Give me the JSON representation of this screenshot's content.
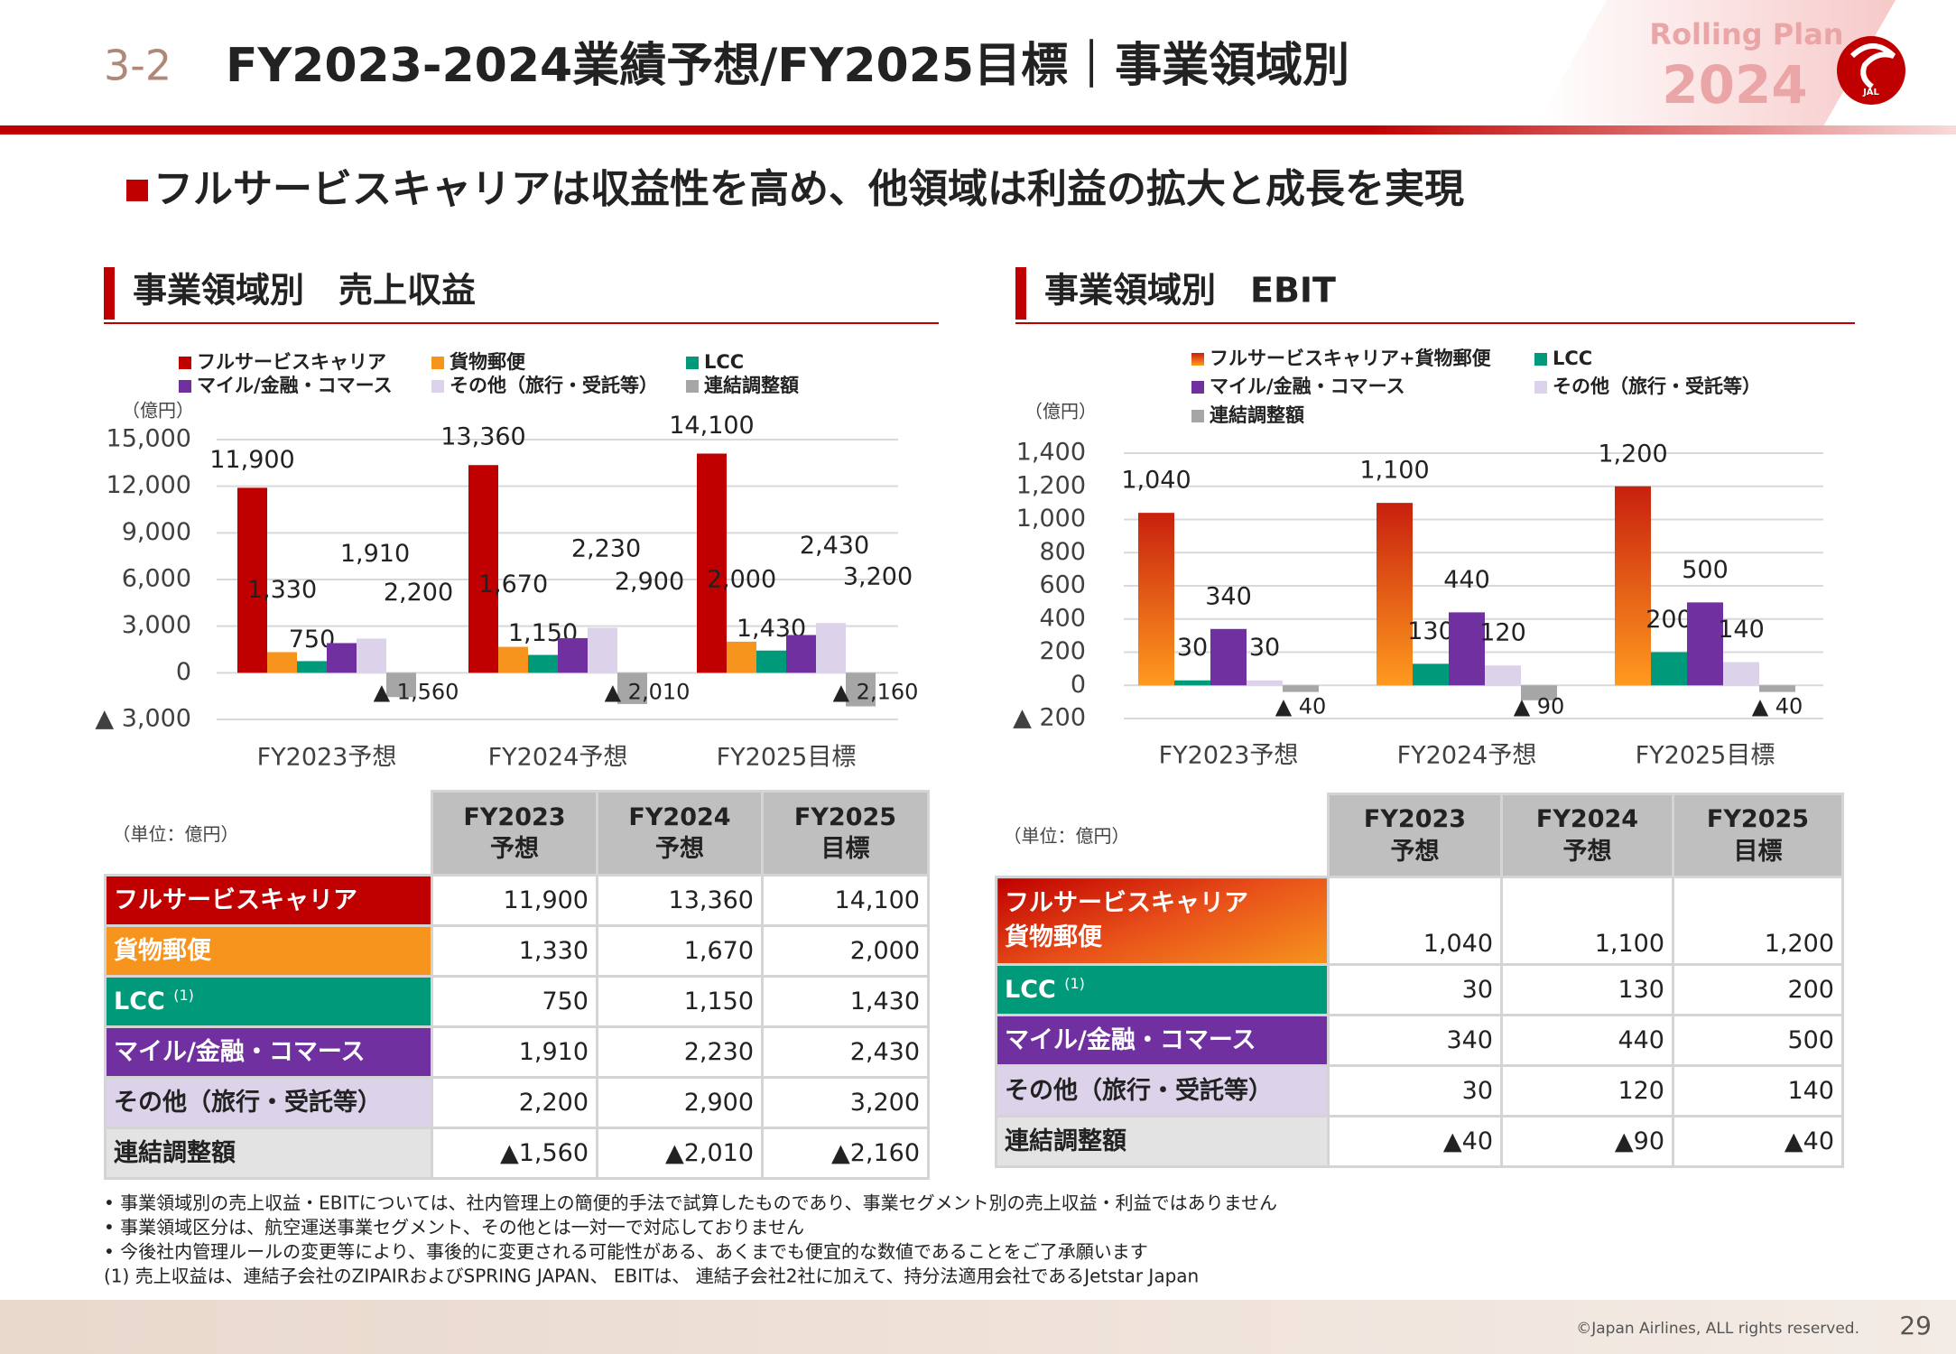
{
  "header": {
    "section": "3-2",
    "title": "FY2023-2024業績予想/FY2025目標｜事業領域別",
    "badge_top": "Rolling Plan",
    "badge_year": "2024",
    "logo": "JAL"
  },
  "headline": "フルサービスキャリアは収益性を高め、他領域は利益の拡大と成長を実現",
  "chart_data": [
    {
      "type": "bar",
      "title": "事業領域別　売上収益",
      "unit": "（億円）",
      "categories": [
        "FY2023予想",
        "FY2024予想",
        "FY2025目標"
      ],
      "series": [
        {
          "name": "フルサービスキャリア",
          "color": "#c00000",
          "values": [
            11900,
            13360,
            14100
          ],
          "value_labels": [
            "11,900",
            "13,360",
            "14,100"
          ]
        },
        {
          "name": "貨物郵便",
          "color": "#f7941d",
          "values": [
            1330,
            1670,
            2000
          ],
          "value_labels": [
            "1,330",
            "1,670",
            "2,000"
          ]
        },
        {
          "name": "LCC",
          "color": "#00997a",
          "values": [
            750,
            1150,
            1430
          ],
          "value_labels": [
            "750",
            "1,150",
            "1,430"
          ]
        },
        {
          "name": "マイル/金融・コマース",
          "color": "#7030a0",
          "values": [
            1910,
            2230,
            2430
          ],
          "value_labels": [
            "1,910",
            "2,230",
            "2,430"
          ]
        },
        {
          "name": "その他（旅行・受託等）",
          "color": "#dcd3ea",
          "values": [
            2200,
            2900,
            3200
          ],
          "value_labels": [
            "2,200",
            "2,900",
            "3,200"
          ]
        },
        {
          "name": "連結調整額",
          "color": "#a6a6a6",
          "values": [
            -1560,
            -2010,
            -2160
          ],
          "value_labels": [
            "▲ 1,560",
            "▲ 2,010",
            "▲ 2,160"
          ]
        }
      ],
      "ylim": [
        -3000,
        15000
      ],
      "yticks": [
        {
          "value": -3000,
          "label": "▲ 3,000"
        },
        0,
        {
          "value": 3000,
          "label": "3,000"
        },
        {
          "value": 6000,
          "label": "6,000"
        },
        {
          "value": 9000,
          "label": "9,000"
        },
        {
          "value": 12000,
          "label": "12,000"
        },
        {
          "value": 15000,
          "label": "15,000"
        }
      ],
      "grid": true
    },
    {
      "type": "bar",
      "title": "事業領域別　EBIT",
      "unit": "（億円）",
      "categories": [
        "FY2023予想",
        "FY2024予想",
        "FY2025目標"
      ],
      "series": [
        {
          "name": "フルサービスキャリア+貨物郵便",
          "color": "#e0561b",
          "gradient": [
            "#c8200e",
            "#ff9a1f"
          ],
          "values": [
            1040,
            1100,
            1200
          ],
          "value_labels": [
            "1,040",
            "1,100",
            "1,200"
          ]
        },
        {
          "name": "LCC",
          "color": "#00997a",
          "values": [
            30,
            130,
            200
          ]
        },
        {
          "name": "マイル/金融・コマース",
          "color": "#7030a0",
          "values": [
            340,
            440,
            500
          ]
        },
        {
          "name": "その他（旅行・受託等）",
          "color": "#dcd3ea",
          "values": [
            30,
            120,
            140
          ]
        },
        {
          "name": "連結調整額",
          "color": "#a6a6a6",
          "values": [
            -40,
            -90,
            -40
          ],
          "value_labels": [
            "▲ 40",
            "▲ 90",
            "▲ 40"
          ]
        }
      ],
      "ylim": [
        -200,
        1400
      ],
      "yticks": [
        {
          "value": -200,
          "label": "▲ 200"
        },
        0,
        200,
        400,
        600,
        800,
        {
          "value": 1000,
          "label": "1,000"
        },
        {
          "value": 1200,
          "label": "1,200"
        },
        {
          "value": 1400,
          "label": "1,400"
        }
      ],
      "grid": true
    }
  ],
  "tables": [
    {
      "unit": "（単位：億円）",
      "header": [
        [
          "FY2023",
          "予想"
        ],
        [
          "FY2024",
          "予想"
        ],
        [
          "FY2025",
          "目標"
        ]
      ],
      "rows": [
        {
          "label": "フルサービスキャリア",
          "values": [
            "11,900",
            "13,360",
            "14,100"
          ]
        },
        {
          "label": "貨物郵便",
          "values": [
            "1,330",
            "1,670",
            "2,000"
          ]
        },
        {
          "label": "LCC",
          "note": "(1)",
          "values": [
            "750",
            "1,150",
            "1,430"
          ]
        },
        {
          "label": "マイル/金融・コマース",
          "values": [
            "1,910",
            "2,230",
            "2,430"
          ]
        },
        {
          "label": "その他（旅行・受託等）",
          "values": [
            "2,200",
            "2,900",
            "3,200"
          ]
        },
        {
          "label": "連結調整額",
          "values": [
            "▲1,560",
            "▲2,010",
            "▲2,160"
          ]
        }
      ]
    },
    {
      "unit": "（単位：億円）",
      "header": [
        [
          "FY2023",
          "予想"
        ],
        [
          "FY2024",
          "予想"
        ],
        [
          "FY2025",
          "目標"
        ]
      ],
      "rows": [
        {
          "label": "フルサービスキャリア\n貨物郵便",
          "values": [
            "1,040",
            "1,100",
            "1,200"
          ]
        },
        {
          "label": "LCC",
          "note": "(1)",
          "values": [
            "30",
            "130",
            "200"
          ]
        },
        {
          "label": "マイル/金融・コマース",
          "values": [
            "340",
            "440",
            "500"
          ]
        },
        {
          "label": "その他（旅行・受託等）",
          "values": [
            "30",
            "120",
            "140"
          ]
        },
        {
          "label": "連結調整額",
          "values": [
            "▲40",
            "▲90",
            "▲40"
          ]
        }
      ]
    }
  ],
  "footnotes": [
    "• 事業領域別の売上収益・EBITについては、社内管理上の簡便的手法で試算したものであり、事業セグメント別の売上収益・利益ではありません",
    "• 事業領域区分は、航空運送事業セグメント、その他とは一対一で対応しておりません",
    "• 今後社内管理ルールの変更等により、事後的に変更される可能性がある、あくまでも便宜的な数値であることをご了承願います",
    "(1) 売上収益は、連結子会社のZIPAIRおよびSPRING JAPAN、 EBITは、 連結子会社2社に加えて、持分法適用会社であるJetstar Japan"
  ],
  "footer": {
    "copyright": "©Japan Airlines, ALL rights reserved.",
    "page": "29"
  }
}
